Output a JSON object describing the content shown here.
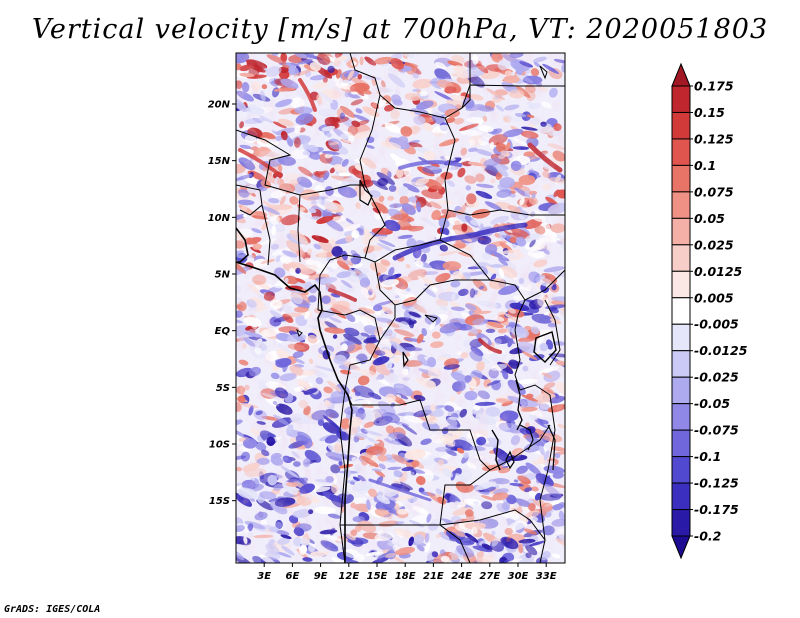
{
  "title": "Vertical velocity [m/s] at 700hPa, VT: 2020051803",
  "footer": "GrADS: IGES/COLA",
  "map": {
    "lat_labels": [
      "20N",
      "15N",
      "10N",
      "5N",
      "EQ",
      "5S",
      "10S",
      "15S"
    ],
    "lon_labels": [
      "3E",
      "6E",
      "9E",
      "12E",
      "15E",
      "18E",
      "21E",
      "24E",
      "27E",
      "30E",
      "33E"
    ],
    "lat_range": [
      -20.5,
      24.5
    ],
    "lon_range": [
      0,
      35
    ]
  },
  "colorbar": {
    "labels": [
      "0.175",
      "0.15",
      "0.125",
      "0.1",
      "0.075",
      "0.05",
      "0.025",
      "0.0125",
      "0.005",
      "-0.005",
      "-0.0125",
      "-0.025",
      "-0.05",
      "-0.075",
      "-0.1",
      "-0.125",
      "-0.175",
      "-0.2"
    ],
    "colors": [
      "#a21824",
      "#c0262e",
      "#d23a3a",
      "#e0564f",
      "#e77466",
      "#ef9285",
      "#f4b0a6",
      "#f8cfc8",
      "#fbe7e3",
      "#ffffff",
      "#e6e6fa",
      "#cbcaf6",
      "#aeaaf0",
      "#8f88e6",
      "#7067dc",
      "#5149cf",
      "#3a2fbf",
      "#2a1aa8",
      "#1d0c92"
    ]
  }
}
